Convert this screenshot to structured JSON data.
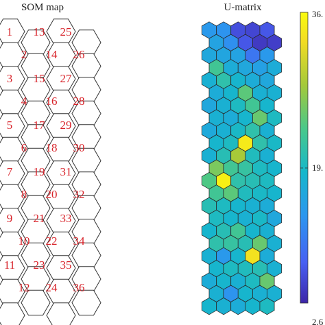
{
  "som_map": {
    "title": "SOM map",
    "labels": [
      "1",
      "2",
      "3",
      "4",
      "5",
      "6",
      "7",
      "8",
      "9",
      "10",
      "11",
      "12",
      "13",
      "14",
      "15",
      "16",
      "17",
      "18",
      "19",
      "20",
      "21",
      "22",
      "23",
      "24",
      "25",
      "26",
      "27",
      "28",
      "29",
      "30",
      "31",
      "32",
      "33",
      "34",
      "35",
      "36"
    ]
  },
  "umatrix": {
    "title": "U-matrix",
    "colorbar": {
      "max_label": "36.",
      "mid_label": "19.",
      "min_label": "2.6",
      "colors": [
        "#3e26a8",
        "#4760f3",
        "#2c96ef",
        "#16b7cb",
        "#49c88a",
        "#a4c93a",
        "#f2dc23",
        "#f9fb0e"
      ]
    },
    "grid": {
      "columns": 5,
      "rows": 23,
      "values": [
        [
          0.3,
          0.28,
          0.1,
          0.08,
          0.12
        ],
        [
          0.34,
          0.27,
          0.12,
          0.05,
          0.06
        ],
        [
          0.36,
          0.35,
          0.34,
          0.2,
          0.3
        ],
        [
          0.55,
          0.38,
          0.36,
          0.33,
          0.38
        ],
        [
          0.4,
          0.5,
          0.42,
          0.38,
          0.36
        ],
        [
          0.38,
          0.42,
          0.6,
          0.4,
          0.4
        ],
        [
          0.36,
          0.4,
          0.45,
          0.55,
          0.42
        ],
        [
          0.4,
          0.38,
          0.42,
          0.62,
          0.45
        ],
        [
          0.37,
          0.4,
          0.44,
          0.5,
          0.4
        ],
        [
          0.42,
          0.45,
          0.92,
          0.5,
          0.44
        ],
        [
          0.4,
          0.48,
          0.72,
          0.46,
          0.4
        ],
        [
          0.65,
          0.55,
          0.52,
          0.45,
          0.42
        ],
        [
          0.58,
          0.95,
          0.5,
          0.48,
          0.45
        ],
        [
          0.55,
          0.6,
          0.46,
          0.44,
          0.42
        ],
        [
          0.48,
          0.45,
          0.42,
          0.4,
          0.38
        ],
        [
          0.45,
          0.42,
          0.4,
          0.44,
          0.36
        ],
        [
          0.42,
          0.48,
          0.55,
          0.42,
          0.4
        ],
        [
          0.5,
          0.52,
          0.48,
          0.62,
          0.4
        ],
        [
          0.4,
          0.3,
          0.42,
          0.88,
          0.38
        ],
        [
          0.42,
          0.45,
          0.46,
          0.48,
          0.4
        ],
        [
          0.38,
          0.42,
          0.4,
          0.45,
          0.62
        ],
        [
          0.4,
          0.28,
          0.42,
          0.4,
          0.4
        ],
        [
          0.42,
          0.4,
          0.38,
          0.42,
          0.45
        ]
      ]
    }
  }
}
